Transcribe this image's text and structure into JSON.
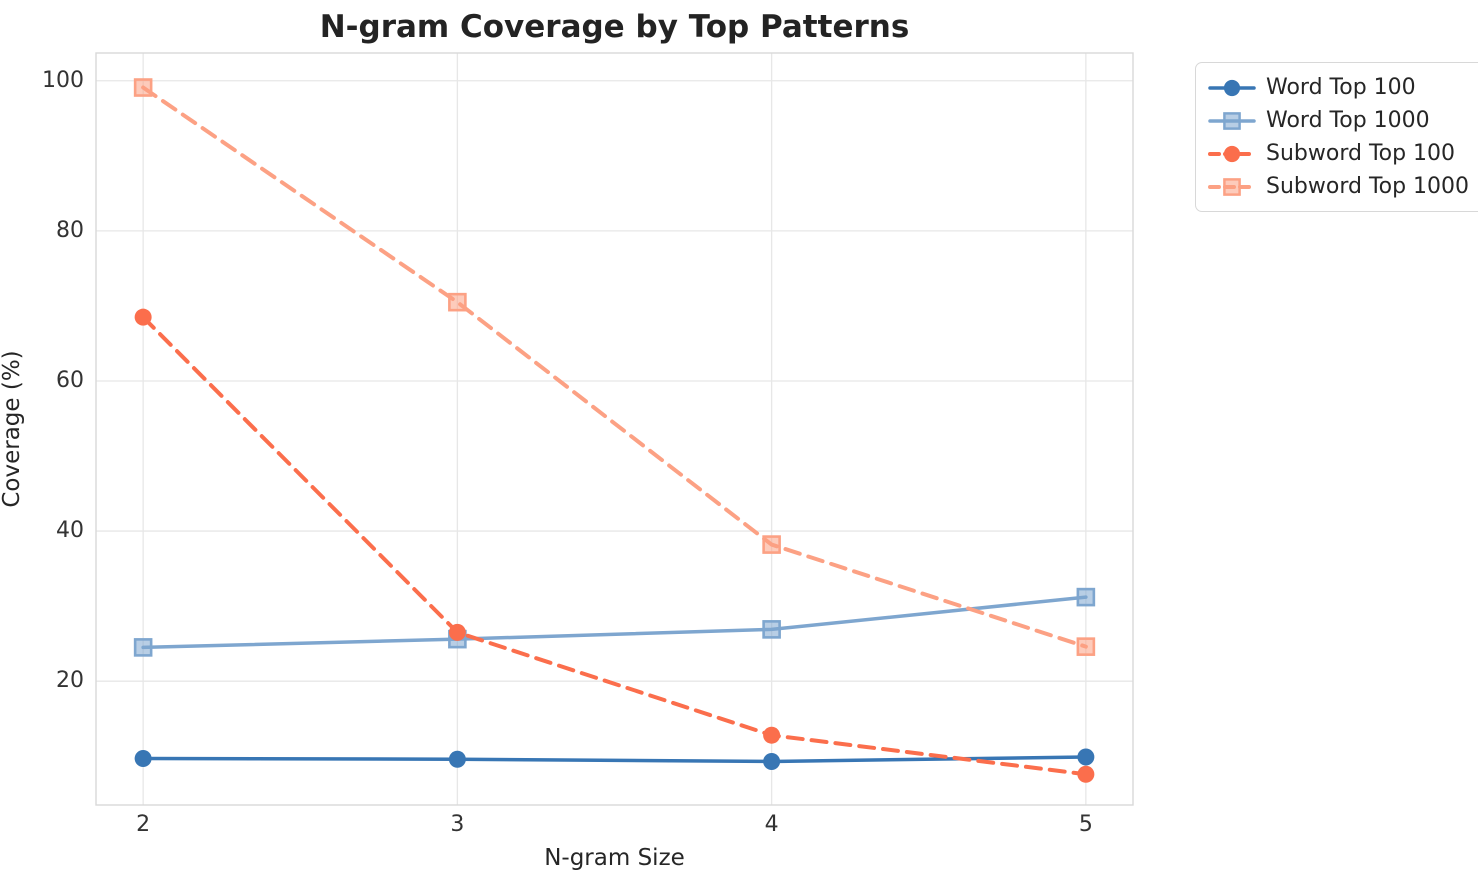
{
  "title": "N-gram Coverage by Top Patterns",
  "chart_data": {
    "type": "line",
    "title": "N-gram Coverage by Top Patterns",
    "xlabel": "N-gram Size",
    "ylabel": "Coverage (%)",
    "x": [
      2,
      3,
      4,
      5
    ],
    "series": [
      {
        "name": "Word Top 100",
        "values": [
          9.7,
          9.6,
          9.3,
          9.9
        ],
        "color": "#3876b4",
        "marker": "circle",
        "dash": false
      },
      {
        "name": "Word Top 1000",
        "values": [
          24.5,
          25.6,
          26.9,
          31.2
        ],
        "color": "#7ea6cf",
        "marker": "square",
        "dash": false
      },
      {
        "name": "Subword Top 100",
        "values": [
          68.5,
          26.5,
          12.8,
          7.6
        ],
        "color": "#fb6e4c",
        "marker": "circle",
        "dash": true
      },
      {
        "name": "Subword Top 1000",
        "values": [
          99.1,
          70.5,
          38.2,
          24.6
        ],
        "color": "#fca184",
        "marker": "square",
        "dash": true
      }
    ],
    "xticks": [
      2,
      3,
      4,
      5
    ],
    "yticks": [
      20,
      40,
      60,
      80,
      100
    ],
    "xlim": [
      1.85,
      5.15
    ],
    "ylim": [
      3.5,
      103.7
    ],
    "grid": true,
    "legend_position": "outside-top-right",
    "colors": {
      "grid": "#e7e7e7",
      "frame": "#d9d9d9",
      "text": "#262626"
    }
  }
}
